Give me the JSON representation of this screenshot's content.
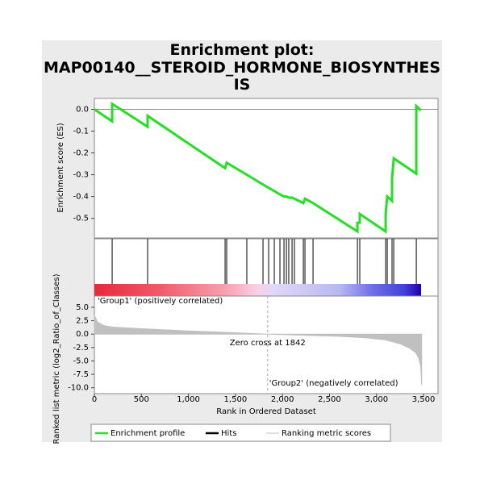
{
  "title": "Enrichment plot:",
  "subtitle": "MAP00140__STEROID_HORMONE_BIOSYNTHESIS",
  "chart_data": [
    {
      "type": "line",
      "ylabel": "Enrichment score (ES)",
      "xlim": [
        0,
        3654
      ],
      "ylim": [
        -0.59,
        0.05
      ],
      "yticks": [
        {
          "value": 0,
          "label": "0.0"
        },
        -0.1,
        -0.2,
        -0.3,
        -0.4,
        -0.5
      ],
      "series": [
        {
          "name": "Enrichment profile",
          "color": "#22e022",
          "x": [
            0,
            189,
            189,
            566,
            566,
            1390,
            1407,
            1621,
            1793,
            1853,
            1913,
            1973,
            2016,
            2042,
            2067,
            2102,
            2127,
            2222,
            2239,
            2325,
            2797,
            2797,
            2822,
            2822,
            3097,
            3097,
            3114,
            3165,
            3165,
            3183,
            3423,
            3423,
            3472
          ],
          "values": [
            0,
            -0.055,
            0.025,
            -0.08,
            -0.03,
            -0.27,
            -0.245,
            -0.3,
            -0.345,
            -0.36,
            -0.375,
            -0.39,
            -0.4,
            -0.4,
            -0.405,
            -0.405,
            -0.41,
            -0.43,
            -0.41,
            -0.43,
            -0.56,
            -0.52,
            -0.52,
            -0.48,
            -0.56,
            -0.48,
            -0.4,
            -0.42,
            -0.32,
            -0.225,
            -0.295,
            0.015,
            -0.005
          ]
        }
      ]
    },
    {
      "type": "hits",
      "xlim": [
        0,
        3654
      ],
      "series": [
        {
          "name": "Hits",
          "color": "#000000",
          "x": [
            189,
            566,
            1390,
            1407,
            1621,
            1793,
            1853,
            1913,
            1973,
            2016,
            2042,
            2067,
            2102,
            2127,
            2222,
            2239,
            2325,
            2797,
            2822,
            3097,
            3114,
            3165,
            3183,
            3423
          ]
        }
      ]
    },
    {
      "type": "area",
      "ylabel": "Ranked list metric (log2_Ratio_of_Classes)",
      "xlabel": "Rank in Ordered Dataset",
      "xlim": [
        0,
        3654
      ],
      "ylim": [
        -11.1,
        7.1
      ],
      "xticks": [
        0,
        500,
        {
          "value": 1000,
          "label": "1,000"
        },
        {
          "value": 1500,
          "label": "1,500"
        },
        {
          "value": 2000,
          "label": "2,000"
        },
        {
          "value": 2500,
          "label": "2,500"
        },
        {
          "value": 3000,
          "label": "3,000"
        },
        {
          "value": 3500,
          "label": "3,500"
        }
      ],
      "yticks": [
        {
          "value": 5,
          "label": "5.0"
        },
        2.5,
        {
          "value": 0,
          "label": "0.0"
        },
        -2.5,
        {
          "value": -5,
          "label": "-5.0"
        },
        -7.5,
        {
          "value": -10,
          "label": "-10.0"
        }
      ],
      "zero_cross": 1842,
      "annotations": [
        "'Group1' (positively correlated)",
        "Zero cross at 1842",
        "'Group2' (negatively correlated)"
      ],
      "series": [
        {
          "name": "Ranking metric scores",
          "color": "#c0c0c0",
          "x": [
            0,
            30,
            100,
            200,
            500,
            1000,
            1500,
            1842,
            2200,
            2600,
            2900,
            3100,
            3250,
            3350,
            3420,
            3450,
            3470,
            3480
          ],
          "values": [
            3.6,
            2.3,
            1.6,
            1.3,
            1.0,
            0.6,
            0.25,
            0,
            -0.2,
            -0.4,
            -0.7,
            -1.1,
            -1.8,
            -2.6,
            -3.5,
            -4.5,
            -6,
            -9.5
          ]
        }
      ]
    }
  ]
}
